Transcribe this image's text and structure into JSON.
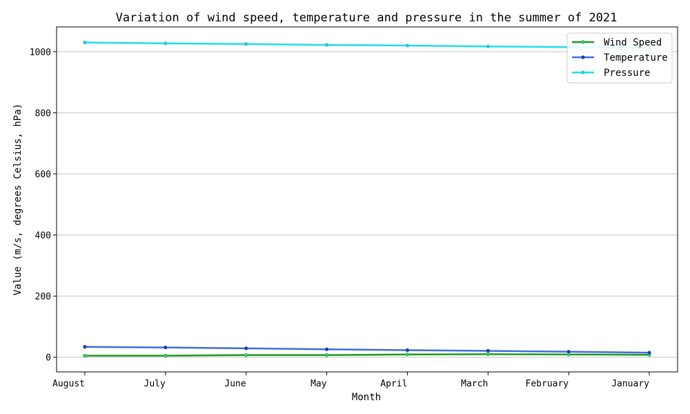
{
  "chart_data": {
    "type": "line",
    "title": "Variation of wind speed, temperature and pressure in the summer of 2021",
    "xlabel": "Month",
    "ylabel": "Value (m/s, degrees Celsius, hPa)",
    "categories": [
      "August",
      "July",
      "June",
      "May",
      "April",
      "March",
      "February",
      "January"
    ],
    "yticks": [
      0,
      200,
      400,
      600,
      800,
      1000
    ],
    "ylim": [
      -48,
      1081
    ],
    "grid": "horizontal",
    "legend_position": "top-right",
    "series": [
      {
        "name": "Wind Speed",
        "color": "#1a9a1a",
        "marker_color": "#2ecc71",
        "values": [
          5,
          5,
          7,
          7,
          9,
          10,
          9,
          8
        ]
      },
      {
        "name": "Temperature",
        "color": "#4169e1",
        "marker_color": "#1f3aa0",
        "values": [
          34,
          32,
          29,
          26,
          23,
          21,
          18,
          15
        ]
      },
      {
        "name": "Pressure",
        "color": "#1fdcec",
        "marker_color": "#3bbfcf",
        "values": [
          1030,
          1027,
          1025,
          1022,
          1020,
          1017,
          1015,
          1012
        ]
      }
    ]
  }
}
